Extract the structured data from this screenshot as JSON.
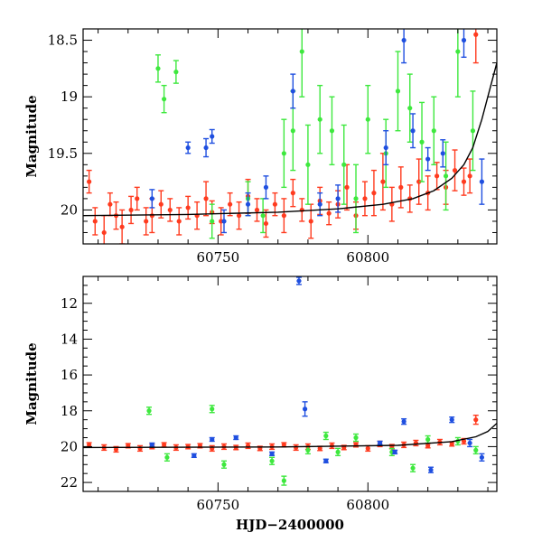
{
  "colors": {
    "blue": "#1f4fe0",
    "green": "#3ee83e",
    "red": "#ff3b1f",
    "model": "#000000"
  },
  "chart_data": [
    {
      "type": "scatter",
      "title": "",
      "xlabel": "",
      "ylabel": "Magnitude",
      "xlim": [
        60705,
        60843
      ],
      "ylim": [
        20.3,
        18.4
      ],
      "y_inverted": true,
      "xticks": [
        60750,
        60800
      ],
      "yticks": [
        18.5,
        19,
        19.5,
        20
      ],
      "ytick_labels": [
        "18.5",
        "19",
        "19.5",
        "20"
      ],
      "model_curve": {
        "x": [
          60705,
          60740,
          60770,
          60790,
          60805,
          60815,
          60822,
          60828,
          60832,
          60835,
          60838,
          60840,
          60843
        ],
        "y": [
          20.05,
          20.04,
          20.02,
          19.99,
          19.95,
          19.9,
          19.83,
          19.72,
          19.6,
          19.45,
          19.2,
          19.0,
          18.7
        ]
      },
      "series": [
        {
          "color_key": "red",
          "x": [
            60707,
            60709,
            60712,
            60714,
            60716,
            60718,
            60721,
            60723,
            60726,
            60728,
            60731,
            60734,
            60737,
            60740,
            60743,
            60746,
            60748,
            60751,
            60754,
            60757,
            60760,
            60763,
            60766,
            60769,
            60772,
            60775,
            60778,
            60781,
            60784,
            60787,
            60790,
            60793,
            60796,
            60799,
            60802,
            60805,
            60808,
            60811,
            60814,
            60817,
            60820,
            60823,
            60826,
            60829,
            60832,
            60834,
            60836
          ],
          "y": [
            19.75,
            20.1,
            20.2,
            19.95,
            20.05,
            20.15,
            20.0,
            19.9,
            20.1,
            20.05,
            19.95,
            20.0,
            20.1,
            19.98,
            20.05,
            19.9,
            20.02,
            20.1,
            19.95,
            20.05,
            19.88,
            20.0,
            20.12,
            19.95,
            20.05,
            19.85,
            20.0,
            20.1,
            19.92,
            20.03,
            19.95,
            19.8,
            20.05,
            19.9,
            19.85,
            19.75,
            19.95,
            19.8,
            19.9,
            19.75,
            19.85,
            19.7,
            19.8,
            19.65,
            19.75,
            19.7,
            18.45
          ],
          "err": [
            0.1,
            0.12,
            0.15,
            0.1,
            0.12,
            0.15,
            0.12,
            0.1,
            0.12,
            0.15,
            0.12,
            0.1,
            0.12,
            0.1,
            0.12,
            0.15,
            0.1,
            0.12,
            0.1,
            0.12,
            0.15,
            0.1,
            0.12,
            0.1,
            0.15,
            0.12,
            0.1,
            0.15,
            0.12,
            0.1,
            0.12,
            0.2,
            0.12,
            0.15,
            0.2,
            0.25,
            0.15,
            0.18,
            0.12,
            0.2,
            0.15,
            0.12,
            0.15,
            0.18,
            0.12,
            0.15,
            0.25
          ]
        },
        {
          "color_key": "green",
          "x": [
            60730,
            60732,
            60736,
            60748,
            60760,
            60765,
            60772,
            60775,
            60778,
            60780,
            60784,
            60788,
            60792,
            60796,
            60800,
            60806,
            60810,
            60814,
            60818,
            60822,
            60826,
            60830,
            60835
          ],
          "y": [
            18.75,
            19.02,
            18.78,
            20.1,
            19.9,
            20.05,
            19.5,
            19.3,
            18.6,
            19.6,
            19.2,
            19.3,
            19.6,
            19.9,
            19.2,
            19.5,
            18.95,
            19.1,
            19.4,
            19.3,
            19.7,
            18.6,
            19.3
          ],
          "err": [
            0.12,
            0.12,
            0.1,
            0.15,
            0.15,
            0.15,
            0.3,
            0.35,
            0.4,
            0.35,
            0.3,
            0.3,
            0.35,
            0.3,
            0.3,
            0.3,
            0.35,
            0.3,
            0.35,
            0.3,
            0.3,
            0.4,
            0.35
          ]
        },
        {
          "color_key": "blue",
          "x": [
            60728,
            60740,
            60746,
            60748,
            60752,
            60760,
            60766,
            60775,
            60784,
            60790,
            60806,
            60812,
            60815,
            60820,
            60825,
            60832,
            60838
          ],
          "y": [
            19.9,
            19.45,
            19.45,
            19.35,
            20.1,
            19.95,
            19.8,
            18.95,
            19.95,
            19.9,
            19.45,
            18.5,
            19.3,
            19.55,
            19.5,
            18.5,
            19.75
          ],
          "err": [
            0.08,
            0.05,
            0.08,
            0.06,
            0.1,
            0.1,
            0.1,
            0.15,
            0.1,
            0.12,
            0.15,
            0.2,
            0.15,
            0.1,
            0.12,
            0.15,
            0.2
          ]
        }
      ]
    },
    {
      "type": "scatter",
      "title": "",
      "xlabel": "HJD−2400000",
      "ylabel": "Magnitude",
      "xlim": [
        60705,
        60843
      ],
      "ylim": [
        22.5,
        10.5
      ],
      "y_inverted": true,
      "xticks": [
        60750,
        60800
      ],
      "yticks": [
        12,
        14,
        16,
        18,
        20,
        22
      ],
      "ytick_labels": [
        "12",
        "14",
        "16",
        "18",
        "20",
        "22"
      ],
      "model_curve": {
        "x": [
          60705,
          60770,
          60810,
          60828,
          60836,
          60840,
          60843
        ],
        "y": [
          20.05,
          20.02,
          19.93,
          19.72,
          19.45,
          19.15,
          18.7
        ]
      },
      "series": [
        {
          "color_key": "red",
          "x": [
            60707,
            60712,
            60716,
            60720,
            60724,
            60728,
            60732,
            60736,
            60740,
            60744,
            60748,
            60752,
            60756,
            60760,
            60764,
            60768,
            60772,
            60776,
            60780,
            60784,
            60788,
            60792,
            60796,
            60800,
            60804,
            60808,
            60812,
            60816,
            60820,
            60824,
            60828,
            60832,
            60836
          ],
          "y": [
            19.9,
            20.05,
            20.15,
            19.95,
            20.1,
            20.0,
            19.9,
            20.05,
            20.0,
            19.95,
            20.1,
            20.0,
            20.05,
            19.95,
            20.1,
            20.0,
            19.9,
            20.05,
            20.0,
            20.1,
            19.95,
            20.05,
            19.9,
            20.1,
            19.85,
            20.0,
            19.9,
            19.8,
            19.95,
            19.75,
            19.85,
            19.7,
            18.5
          ],
          "err": [
            0.12,
            0.15,
            0.15,
            0.12,
            0.15,
            0.12,
            0.12,
            0.15,
            0.12,
            0.12,
            0.15,
            0.15,
            0.12,
            0.15,
            0.12,
            0.15,
            0.12,
            0.15,
            0.15,
            0.12,
            0.15,
            0.12,
            0.12,
            0.15,
            0.15,
            0.12,
            0.15,
            0.15,
            0.12,
            0.15,
            0.12,
            0.15,
            0.25
          ]
        },
        {
          "color_key": "green",
          "x": [
            60727,
            60733,
            60748,
            60752,
            60768,
            60772,
            60780,
            60786,
            60790,
            60796,
            60808,
            60815,
            60820,
            60830,
            60836
          ],
          "y": [
            18.0,
            20.6,
            17.9,
            21.0,
            20.8,
            21.9,
            20.2,
            19.4,
            20.3,
            19.5,
            20.3,
            21.2,
            19.6,
            19.7,
            20.2
          ],
          "err": [
            0.2,
            0.2,
            0.2,
            0.2,
            0.2,
            0.25,
            0.2,
            0.2,
            0.2,
            0.2,
            0.2,
            0.2,
            0.2,
            0.2,
            0.2
          ]
        },
        {
          "color_key": "blue",
          "x": [
            60728,
            60742,
            60748,
            60756,
            60768,
            60777,
            60779,
            60786,
            60804,
            60809,
            60812,
            60821,
            60828,
            60834,
            60838
          ],
          "y": [
            19.9,
            20.5,
            19.6,
            19.5,
            20.4,
            10.75,
            17.9,
            20.8,
            19.8,
            20.3,
            18.6,
            21.3,
            18.5,
            19.8,
            20.6
          ],
          "err": [
            0.1,
            0.1,
            0.1,
            0.1,
            0.1,
            0.2,
            0.4,
            0.1,
            0.1,
            0.1,
            0.15,
            0.15,
            0.15,
            0.2,
            0.2
          ]
        }
      ]
    }
  ]
}
